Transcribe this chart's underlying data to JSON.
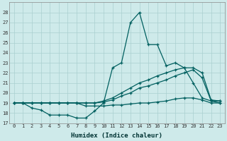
{
  "xlabel": "Humidex (Indice chaleur)",
  "ylabel": "",
  "bg_color": "#ceeaea",
  "grid_color": "#aacfcf",
  "line_color": "#005f5f",
  "xlim": [
    -0.5,
    23.5
  ],
  "ylim": [
    17,
    29
  ],
  "yticks": [
    17,
    18,
    19,
    20,
    21,
    22,
    23,
    24,
    25,
    26,
    27,
    28
  ],
  "xticks": [
    0,
    1,
    2,
    3,
    4,
    5,
    6,
    7,
    8,
    9,
    10,
    11,
    12,
    13,
    14,
    15,
    16,
    17,
    18,
    19,
    20,
    21,
    22,
    23
  ],
  "series": [
    {
      "x": [
        0,
        1,
        2,
        3,
        4,
        5,
        6,
        7,
        8,
        9,
        10,
        11,
        12,
        13,
        14,
        15,
        16,
        17,
        18,
        19,
        20,
        21,
        22,
        23
      ],
      "y": [
        19.0,
        19.0,
        18.5,
        18.3,
        17.8,
        17.8,
        17.8,
        17.5,
        17.5,
        18.2,
        19.0,
        22.5,
        23.0,
        27.0,
        28.0,
        24.8,
        24.8,
        22.7,
        23.0,
        22.5,
        21.0,
        19.5,
        19.2,
        19.2
      ]
    },
    {
      "x": [
        0,
        1,
        2,
        3,
        4,
        5,
        6,
        7,
        8,
        9,
        10,
        11,
        12,
        13,
        14,
        15,
        16,
        17,
        18,
        19,
        20,
        21,
        22,
        23
      ],
      "y": [
        19.0,
        19.0,
        19.0,
        19.0,
        19.0,
        19.0,
        19.0,
        19.0,
        19.0,
        19.0,
        19.2,
        19.5,
        20.0,
        20.5,
        21.0,
        21.3,
        21.7,
        22.0,
        22.3,
        22.5,
        22.5,
        22.0,
        19.3,
        19.2
      ]
    },
    {
      "x": [
        0,
        1,
        2,
        3,
        4,
        5,
        6,
        7,
        8,
        9,
        10,
        11,
        12,
        13,
        14,
        15,
        16,
        17,
        18,
        19,
        20,
        21,
        22,
        23
      ],
      "y": [
        19.0,
        19.0,
        19.0,
        19.0,
        19.0,
        19.0,
        19.0,
        19.0,
        19.0,
        19.0,
        19.1,
        19.3,
        19.7,
        20.0,
        20.5,
        20.7,
        21.0,
        21.3,
        21.7,
        22.0,
        22.3,
        21.5,
        19.2,
        19.0
      ]
    },
    {
      "x": [
        0,
        1,
        2,
        3,
        4,
        5,
        6,
        7,
        8,
        9,
        10,
        11,
        12,
        13,
        14,
        15,
        16,
        17,
        18,
        19,
        20,
        21,
        22,
        23
      ],
      "y": [
        19.0,
        19.0,
        19.0,
        19.0,
        19.0,
        19.0,
        19.0,
        19.0,
        18.7,
        18.7,
        18.7,
        18.8,
        18.8,
        18.9,
        19.0,
        19.0,
        19.1,
        19.2,
        19.4,
        19.5,
        19.5,
        19.3,
        19.0,
        19.0
      ]
    }
  ]
}
